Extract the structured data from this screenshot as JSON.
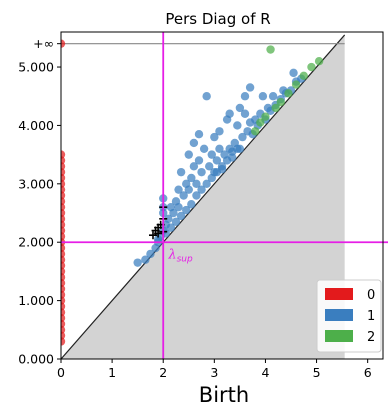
{
  "chart_data": {
    "type": "scatter",
    "title": "Pers Diag of R",
    "xlabel": "Birth",
    "ylabel": "",
    "xlim": [
      0,
      6.3
    ],
    "ylim": [
      0,
      5.6
    ],
    "x_ticks": [
      0,
      1,
      2,
      3,
      4,
      5,
      6
    ],
    "x_tick_labels": [
      "0",
      "1",
      "2",
      "3",
      "4",
      "5",
      "6"
    ],
    "y_ticks": [
      0,
      1,
      2,
      3,
      4,
      5
    ],
    "y_tick_labels": [
      "0.000",
      "1.000",
      "2.000",
      "3.000",
      "4.000",
      "5.000"
    ],
    "infinity_label": "+∞",
    "infinity_y": 5.4,
    "diagonal_max": 5.55,
    "vline_x": 2.0,
    "hline_y": 2.0,
    "annotation": {
      "text": "λ",
      "subscript": "sup",
      "x": 2.1,
      "y": 1.72
    },
    "legend_position": "lower right",
    "series": [
      {
        "name": "0",
        "color": "#e31a1c",
        "points": [
          [
            0,
            0.3
          ],
          [
            0,
            0.4
          ],
          [
            0,
            0.5
          ],
          [
            0,
            0.6
          ],
          [
            0,
            0.7
          ],
          [
            0,
            0.8
          ],
          [
            0,
            0.9
          ],
          [
            0,
            1.0
          ],
          [
            0,
            1.1
          ],
          [
            0,
            1.2
          ],
          [
            0,
            1.3
          ],
          [
            0,
            1.4
          ],
          [
            0,
            1.5
          ],
          [
            0,
            1.6
          ],
          [
            0,
            1.7
          ],
          [
            0,
            1.8
          ],
          [
            0,
            1.9
          ],
          [
            0,
            2.0
          ],
          [
            0,
            2.1
          ],
          [
            0,
            2.2
          ],
          [
            0,
            2.3
          ],
          [
            0,
            2.4
          ],
          [
            0,
            2.5
          ],
          [
            0,
            2.6
          ],
          [
            0,
            2.7
          ],
          [
            0,
            2.8
          ],
          [
            0,
            2.9
          ],
          [
            0,
            3.0
          ],
          [
            0,
            3.1
          ],
          [
            0,
            3.2
          ],
          [
            0,
            3.3
          ],
          [
            0,
            3.4
          ],
          [
            0,
            3.5
          ],
          [
            0,
            5.4
          ]
        ]
      },
      {
        "name": "1",
        "color": "#3a7ebf",
        "points": [
          [
            1.5,
            1.65
          ],
          [
            1.65,
            1.7
          ],
          [
            1.75,
            1.8
          ],
          [
            1.85,
            1.9
          ],
          [
            1.9,
            2.0
          ],
          [
            1.95,
            2.1
          ],
          [
            2.0,
            2.2
          ],
          [
            2.0,
            2.5
          ],
          [
            2.0,
            2.6
          ],
          [
            2.0,
            2.75
          ],
          [
            2.05,
            2.3
          ],
          [
            2.1,
            2.4
          ],
          [
            2.15,
            2.6
          ],
          [
            2.2,
            2.5
          ],
          [
            2.25,
            2.7
          ],
          [
            2.3,
            2.6
          ],
          [
            2.3,
            2.9
          ],
          [
            2.35,
            3.2
          ],
          [
            2.4,
            2.8
          ],
          [
            2.45,
            3.0
          ],
          [
            2.5,
            2.9
          ],
          [
            2.5,
            3.5
          ],
          [
            2.55,
            3.1
          ],
          [
            2.6,
            3.3
          ],
          [
            2.6,
            3.7
          ],
          [
            2.65,
            3.0
          ],
          [
            2.7,
            3.4
          ],
          [
            2.7,
            3.85
          ],
          [
            2.75,
            3.2
          ],
          [
            2.8,
            3.6
          ],
          [
            2.85,
            4.5
          ],
          [
            2.9,
            3.3
          ],
          [
            2.95,
            3.5
          ],
          [
            3.0,
            3.2
          ],
          [
            3.0,
            3.8
          ],
          [
            3.05,
            3.4
          ],
          [
            3.1,
            3.6
          ],
          [
            3.1,
            3.9
          ],
          [
            3.15,
            3.3
          ],
          [
            3.2,
            3.5
          ],
          [
            3.25,
            4.1
          ],
          [
            3.3,
            3.6
          ],
          [
            3.3,
            4.2
          ],
          [
            3.35,
            3.45
          ],
          [
            3.4,
            3.7
          ],
          [
            3.45,
            4.0
          ],
          [
            3.5,
            3.6
          ],
          [
            3.5,
            4.3
          ],
          [
            3.55,
            3.8
          ],
          [
            3.6,
            4.5
          ],
          [
            3.6,
            4.2
          ],
          [
            3.65,
            3.9
          ],
          [
            3.7,
            4.05
          ],
          [
            3.7,
            4.65
          ],
          [
            3.75,
            3.85
          ],
          [
            3.8,
            4.1
          ],
          [
            3.85,
            4.0
          ],
          [
            3.9,
            4.2
          ],
          [
            3.95,
            4.5
          ],
          [
            4.0,
            4.1
          ],
          [
            4.05,
            4.3
          ],
          [
            4.1,
            4.25
          ],
          [
            4.15,
            4.5
          ],
          [
            4.2,
            4.35
          ],
          [
            4.3,
            4.45
          ],
          [
            4.35,
            4.6
          ],
          [
            4.4,
            4.55
          ],
          [
            4.5,
            4.6
          ],
          [
            4.55,
            4.9
          ],
          [
            4.6,
            4.75
          ],
          [
            4.7,
            4.8
          ],
          [
            1.9,
            2.05
          ],
          [
            2.05,
            2.15
          ],
          [
            2.15,
            2.25
          ],
          [
            2.25,
            2.35
          ],
          [
            2.35,
            2.45
          ],
          [
            2.45,
            2.55
          ],
          [
            2.55,
            2.65
          ],
          [
            2.65,
            2.8
          ],
          [
            2.75,
            2.9
          ],
          [
            2.85,
            3.0
          ],
          [
            2.95,
            3.1
          ],
          [
            3.05,
            3.2
          ],
          [
            3.15,
            3.25
          ],
          [
            3.25,
            3.4
          ],
          [
            3.35,
            3.55
          ],
          [
            3.45,
            3.6
          ]
        ]
      },
      {
        "name": "2",
        "color": "#4daf4a",
        "points": [
          [
            3.8,
            3.9
          ],
          [
            3.9,
            4.05
          ],
          [
            4.0,
            4.15
          ],
          [
            4.1,
            5.3
          ],
          [
            4.2,
            4.3
          ],
          [
            4.3,
            4.4
          ],
          [
            4.45,
            4.55
          ],
          [
            4.6,
            4.7
          ],
          [
            4.75,
            4.85
          ],
          [
            4.9,
            5.0
          ],
          [
            5.05,
            5.1
          ]
        ]
      }
    ],
    "cross_markers": [
      [
        1.8,
        2.12
      ],
      [
        1.85,
        2.2
      ],
      [
        1.9,
        2.15
      ],
      [
        1.9,
        2.25
      ],
      [
        1.95,
        2.3
      ],
      [
        2.0,
        2.18
      ],
      [
        2.0,
        2.4
      ],
      [
        2.0,
        2.6
      ]
    ]
  }
}
